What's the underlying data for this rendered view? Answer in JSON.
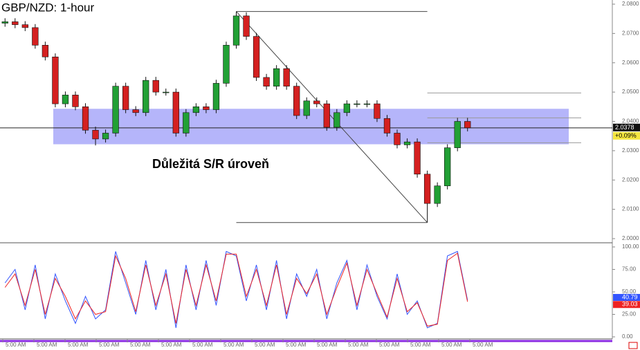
{
  "chart_data": [
    {
      "type": "candlestick",
      "title": "GBP/NZD: 1-hour",
      "open": [
        2.0735,
        2.074,
        2.073,
        2.072,
        2.066,
        2.062,
        2.046,
        2.049,
        2.045,
        2.037,
        2.034,
        2.036,
        2.052,
        2.044,
        2.043,
        2.054,
        2.05,
        2.05,
        2.036,
        2.043,
        2.045,
        2.044,
        2.053,
        2.066,
        2.076,
        2.069,
        2.055,
        2.052,
        2.058,
        2.052,
        2.042,
        2.047,
        2.046,
        2.038,
        2.043,
        2.046,
        2.046,
        2.046,
        2.041,
        2.036,
        2.032,
        2.033,
        2.022,
        2.012,
        2.018,
        2.031,
        2.04
      ],
      "high": [
        2.0752,
        2.0752,
        2.0742,
        2.0732,
        2.0672,
        2.0632,
        2.0502,
        2.0502,
        2.0462,
        2.0382,
        2.0372,
        2.0532,
        2.0532,
        2.0452,
        2.0552,
        2.0552,
        2.0512,
        2.0512,
        2.0442,
        2.0462,
        2.0462,
        2.0542,
        2.0672,
        2.0775,
        2.0772,
        2.0702,
        2.0562,
        2.0592,
        2.0592,
        2.0532,
        2.0482,
        2.0482,
        2.0472,
        2.0442,
        2.0472,
        2.0472,
        2.0472,
        2.0472,
        2.0422,
        2.0372,
        2.0342,
        2.0342,
        2.0232,
        2.0192,
        2.0322,
        2.0412,
        2.0412
      ],
      "low": [
        2.0723,
        2.0718,
        2.0708,
        2.0648,
        2.0608,
        2.0448,
        2.0448,
        2.0438,
        2.0358,
        2.0318,
        2.0328,
        2.0348,
        2.0428,
        2.0418,
        2.0418,
        2.0488,
        2.0488,
        2.0348,
        2.0348,
        2.0418,
        2.0428,
        2.0428,
        2.0518,
        2.0648,
        2.0678,
        2.0538,
        2.0508,
        2.0508,
        2.0508,
        2.0408,
        2.0408,
        2.0448,
        2.0368,
        2.0368,
        2.0418,
        2.0448,
        2.0448,
        2.0398,
        2.0348,
        2.0308,
        2.0308,
        2.0208,
        2.0055,
        2.0108,
        2.0168,
        2.0298,
        2.0366
      ],
      "close": [
        2.074,
        2.073,
        2.072,
        2.066,
        2.062,
        2.046,
        2.049,
        2.045,
        2.037,
        2.034,
        2.036,
        2.052,
        2.044,
        2.043,
        2.054,
        2.05,
        2.05,
        2.036,
        2.043,
        2.045,
        2.044,
        2.053,
        2.066,
        2.076,
        2.069,
        2.055,
        2.052,
        2.058,
        2.052,
        2.042,
        2.047,
        2.046,
        2.038,
        2.043,
        2.046,
        2.046,
        2.046,
        2.041,
        2.036,
        2.032,
        2.033,
        2.022,
        2.012,
        2.018,
        2.031,
        2.04,
        2.0378
      ],
      "up_color": "#22a035",
      "down_color": "#d42020",
      "ylim": [
        2.0,
        2.08
      ],
      "yticks": [
        {
          "value": 2.0,
          "label": "2.0000"
        },
        {
          "value": 2.01,
          "label": "2.0100"
        },
        {
          "value": 2.02,
          "label": "2.0200"
        },
        {
          "value": 2.03,
          "label": "2.0300"
        },
        {
          "value": 2.04,
          "label": "2.0400"
        },
        {
          "value": 2.05,
          "label": "2.0500"
        },
        {
          "value": 2.06,
          "label": "2.0600"
        },
        {
          "value": 2.07,
          "label": "2.0700"
        },
        {
          "value": 2.08,
          "label": "2.0800"
        }
      ],
      "annotation": "Důležitá S/R úroveň",
      "sr_zone": [
        2.0322,
        2.0443
      ],
      "sr_color": "#9c9cf8",
      "swing_levels": [
        2.0775,
        2.0055
      ],
      "fib_levels": [
        2.0497,
        2.0412,
        2.0327
      ],
      "price_tag": {
        "value": 2.0378,
        "label": "2.0378"
      },
      "change_label": "+0.09%"
    },
    {
      "type": "line",
      "series": [
        {
          "name": "%K",
          "color": "#3355ff",
          "values": [
            60,
            75,
            30,
            80,
            20,
            70,
            40,
            15,
            45,
            20,
            30,
            95,
            60,
            25,
            85,
            30,
            75,
            10,
            80,
            30,
            85,
            35,
            95,
            90,
            40,
            80,
            30,
            85,
            20,
            70,
            45,
            75,
            20,
            60,
            85,
            30,
            80,
            45,
            20,
            70,
            25,
            40,
            10,
            15,
            90,
            95,
            40.79
          ],
          "value_label": "40.79"
        },
        {
          "name": "%D",
          "color": "#ee2222",
          "values": [
            55,
            70,
            35,
            75,
            25,
            65,
            45,
            20,
            40,
            25,
            28,
            90,
            65,
            28,
            80,
            35,
            70,
            15,
            75,
            35,
            80,
            40,
            92,
            92,
            45,
            75,
            35,
            80,
            25,
            65,
            48,
            70,
            25,
            55,
            82,
            35,
            75,
            48,
            22,
            65,
            28,
            38,
            12,
            14,
            85,
            93,
            39.03
          ],
          "value_label": "39.03"
        }
      ],
      "ylim": [
        0,
        100
      ],
      "yticks": [
        {
          "value": 0,
          "label": "0.00"
        },
        {
          "value": 25,
          "label": "25.00"
        },
        {
          "value": 50,
          "label": "50.00"
        },
        {
          "value": 75,
          "label": "75.00"
        },
        {
          "value": 100,
          "label": "100.00"
        }
      ],
      "time_labels": [
        "5:00 AM",
        "5:00 AM",
        "5:00 AM",
        "5:00 AM",
        "5:00 AM",
        "5:00 AM",
        "5:00 AM",
        "5:00 AM",
        "5:00 AM",
        "5:00 AM",
        "5:00 AM",
        "5:00 AM",
        "5:00 AM",
        "5:00 AM",
        "5:00 AM",
        "5:00 AM"
      ]
    }
  ]
}
